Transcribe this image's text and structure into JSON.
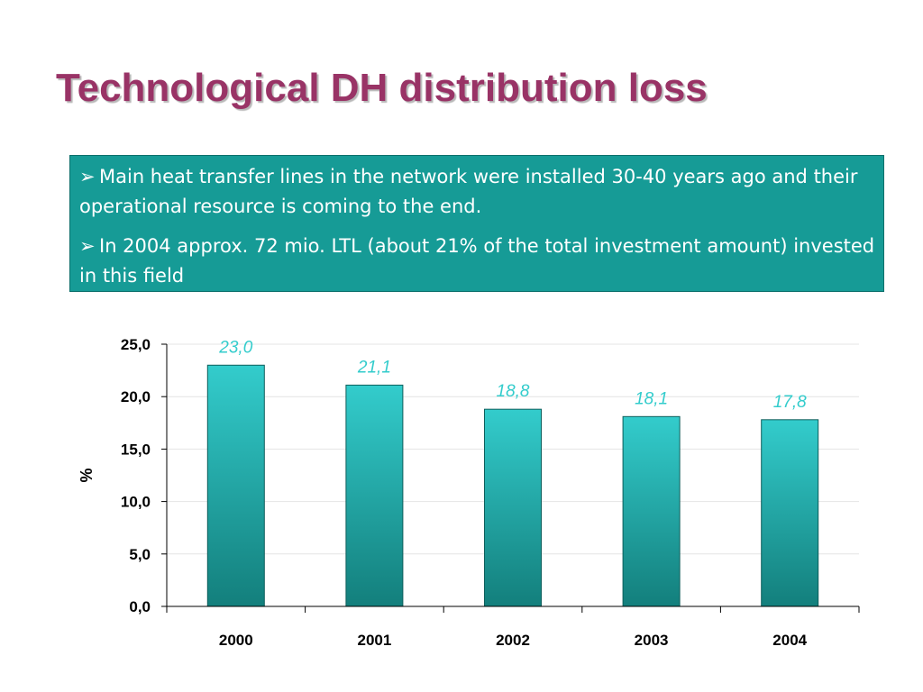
{
  "slide": {
    "title": "Technological DH distribution loss",
    "bullets": [
      {
        "icon": "arrow-bullet-icon",
        "glyph": "➢",
        "text": "Main heat transfer lines in the network were installed 30-40 years ago and their operational resource is coming to the end."
      },
      {
        "icon": "arrow-bullet-icon",
        "glyph": "➢",
        "text": "In 2004 approx. 72 mio. LTL (about 21% of the total investment amount) invested in this field"
      }
    ]
  },
  "colors": {
    "title": "#993366",
    "box_bg": "#169b96",
    "bar_top": "#33cccc",
    "bar_bottom": "#137f7c",
    "data_label": "#33cccc"
  },
  "chart_data": {
    "type": "bar",
    "categories": [
      "2000",
      "2001",
      "2002",
      "2003",
      "2004"
    ],
    "values": [
      23.0,
      21.1,
      18.8,
      18.1,
      17.8
    ],
    "value_labels": [
      "23,0",
      "21,1",
      "18,8",
      "18,1",
      "17,8"
    ],
    "title": "",
    "xlabel": "",
    "ylabel": "%",
    "ylim": [
      0,
      25
    ],
    "yticks": [
      0,
      5,
      10,
      15,
      20,
      25
    ],
    "ytick_labels": [
      "0,0",
      "5,0",
      "10,0",
      "15,0",
      "20,0",
      "25,0"
    ],
    "grid": true,
    "legend": "none"
  }
}
